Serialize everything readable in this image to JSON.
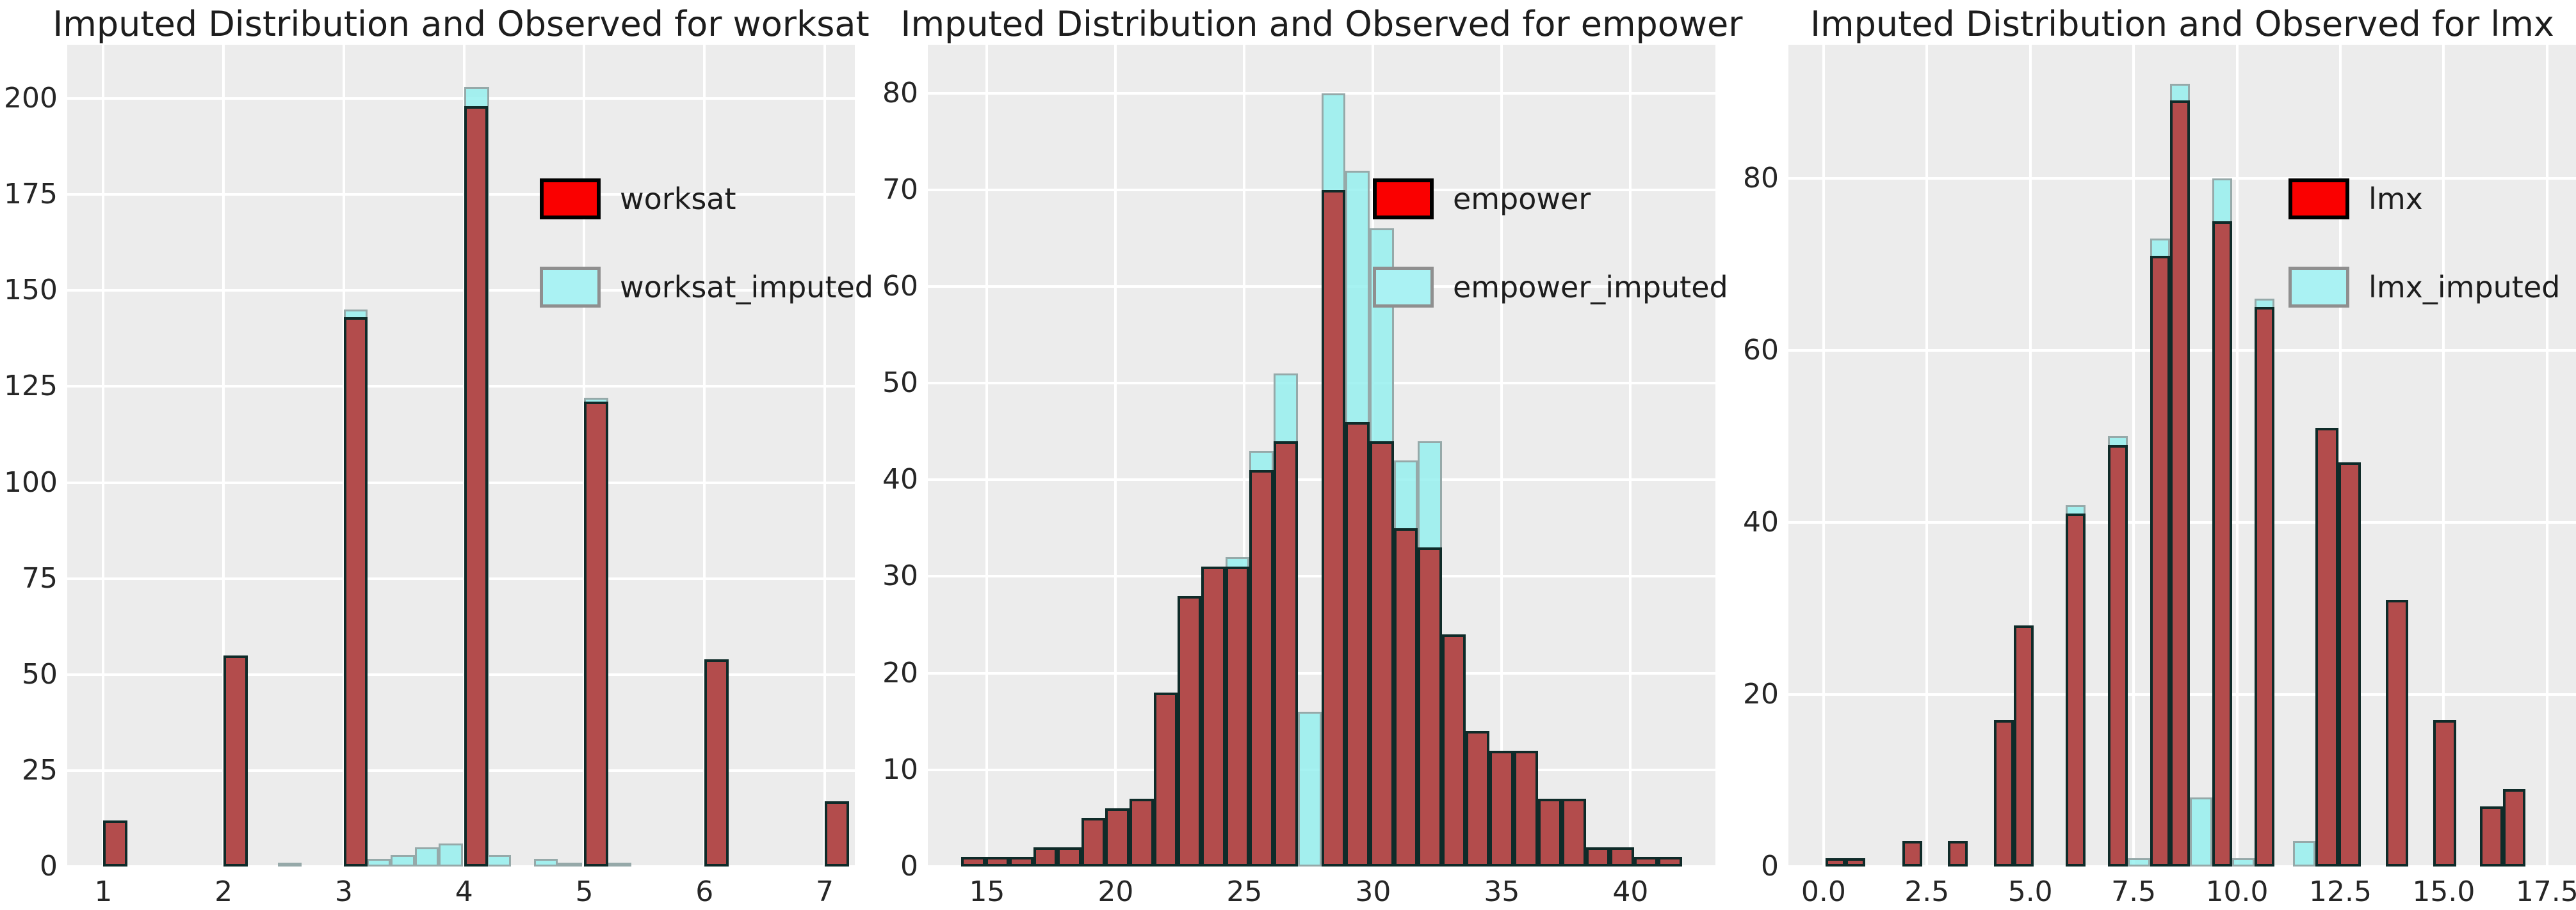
{
  "figure": {
    "background": "#ffffff",
    "panel_background": "#ececec",
    "grid_color": "#ffffff",
    "observed_fill": "#b34c4c",
    "observed_edge": "#0f2b29",
    "imputed_fill": "#a6efee",
    "imputed_edge": "#96a9a9",
    "legend_observed_swatch": "#fa0000",
    "legend_imputed_swatch": "#aaf2f3",
    "text_color": "#262626"
  },
  "chart_data": [
    {
      "type": "bar",
      "id": "worksat",
      "title": "Imputed Distribution and Observed for worksat",
      "legend": [
        "worksat",
        "worksat_imputed"
      ],
      "legend_pos": {
        "x": 0.6,
        "y": 0.163
      },
      "xlim": [
        0.7,
        7.25
      ],
      "ylim": [
        0,
        214
      ],
      "grid": true,
      "xticks": [
        {
          "v": 1,
          "label": "1"
        },
        {
          "v": 2,
          "label": "2"
        },
        {
          "v": 3,
          "label": "3"
        },
        {
          "v": 4,
          "label": "4"
        },
        {
          "v": 5,
          "label": "5"
        },
        {
          "v": 6,
          "label": "6"
        },
        {
          "v": 7,
          "label": "7"
        }
      ],
      "yticks": [
        {
          "v": 0,
          "label": "0"
        },
        {
          "v": 25,
          "label": "25"
        },
        {
          "v": 50,
          "label": "50"
        },
        {
          "v": 75,
          "label": "75"
        },
        {
          "v": 100,
          "label": "100"
        },
        {
          "v": 125,
          "label": "125"
        },
        {
          "v": 150,
          "label": "150"
        },
        {
          "v": 175,
          "label": "175"
        },
        {
          "v": 200,
          "label": "200"
        }
      ],
      "observed_bars": [
        [
          1.0,
          1.2,
          12
        ],
        [
          2.0,
          2.2,
          55
        ],
        [
          3.0,
          3.2,
          143
        ],
        [
          4.0,
          4.2,
          198
        ],
        [
          5.0,
          5.2,
          121
        ],
        [
          6.0,
          6.2,
          54
        ],
        [
          7.0,
          7.2,
          17
        ]
      ],
      "imputed_bars": [
        [
          2.45,
          2.65,
          1
        ],
        [
          3.0,
          3.2,
          145
        ],
        [
          3.19,
          3.39,
          2
        ],
        [
          3.39,
          3.59,
          3
        ],
        [
          3.59,
          3.79,
          5
        ],
        [
          3.79,
          3.99,
          6
        ],
        [
          4.0,
          4.21,
          203
        ],
        [
          4.19,
          4.39,
          3
        ],
        [
          4.58,
          4.78,
          2
        ],
        [
          4.78,
          4.98,
          1
        ],
        [
          5.0,
          5.2,
          122
        ],
        [
          5.19,
          5.39,
          1
        ]
      ]
    },
    {
      "type": "bar",
      "id": "empower",
      "title": "Imputed Distribution and Observed for empower",
      "legend": [
        "empower",
        "empower_imputed"
      ],
      "legend_pos": {
        "x": 0.565,
        "y": 0.163
      },
      "xlim": [
        12.7,
        43.3
      ],
      "ylim": [
        0,
        85
      ],
      "grid": true,
      "xticks": [
        {
          "v": 15,
          "label": "15"
        },
        {
          "v": 20,
          "label": "20"
        },
        {
          "v": 25,
          "label": "25"
        },
        {
          "v": 30,
          "label": "30"
        },
        {
          "v": 35,
          "label": "35"
        },
        {
          "v": 40,
          "label": "40"
        }
      ],
      "yticks": [
        {
          "v": 0,
          "label": "0"
        },
        {
          "v": 10,
          "label": "10"
        },
        {
          "v": 20,
          "label": "20"
        },
        {
          "v": 30,
          "label": "30"
        },
        {
          "v": 40,
          "label": "40"
        },
        {
          "v": 50,
          "label": "50"
        },
        {
          "v": 60,
          "label": "60"
        },
        {
          "v": 70,
          "label": "70"
        },
        {
          "v": 80,
          "label": "80"
        }
      ],
      "observed_bars": [
        [
          14.0,
          14.93,
          1
        ],
        [
          14.93,
          15.87,
          1
        ],
        [
          15.87,
          16.8,
          1
        ],
        [
          16.8,
          17.73,
          2
        ],
        [
          17.73,
          18.67,
          2
        ],
        [
          18.67,
          19.6,
          5
        ],
        [
          19.6,
          20.53,
          6
        ],
        [
          20.53,
          21.47,
          7
        ],
        [
          21.47,
          22.4,
          18
        ],
        [
          22.4,
          23.33,
          28
        ],
        [
          23.33,
          24.27,
          31
        ],
        [
          24.27,
          25.2,
          31
        ],
        [
          25.2,
          26.13,
          41
        ],
        [
          26.13,
          27.07,
          44
        ],
        [
          28.0,
          28.93,
          70
        ],
        [
          28.93,
          29.87,
          46
        ],
        [
          29.87,
          30.8,
          44
        ],
        [
          30.8,
          31.73,
          35
        ],
        [
          31.73,
          32.67,
          33
        ],
        [
          32.67,
          33.6,
          24
        ],
        [
          33.6,
          34.53,
          14
        ],
        [
          34.53,
          35.47,
          12
        ],
        [
          35.47,
          36.4,
          12
        ],
        [
          36.4,
          37.33,
          7
        ],
        [
          37.33,
          38.27,
          7
        ],
        [
          38.27,
          39.2,
          2
        ],
        [
          39.2,
          40.13,
          2
        ],
        [
          40.13,
          41.07,
          1
        ],
        [
          41.07,
          42.0,
          1
        ]
      ],
      "imputed_bars": [
        [
          24.27,
          25.2,
          32
        ],
        [
          25.2,
          26.13,
          43
        ],
        [
          26.13,
          27.07,
          51
        ],
        [
          27.07,
          28.0,
          16
        ],
        [
          28.0,
          28.93,
          80
        ],
        [
          28.93,
          29.87,
          72
        ],
        [
          29.87,
          30.8,
          66
        ],
        [
          30.8,
          31.73,
          42
        ],
        [
          31.73,
          32.67,
          44
        ]
      ]
    },
    {
      "type": "bar",
      "id": "lmx",
      "title": "Imputed Distribution and Observed for lmx",
      "legend": [
        "lmx",
        "lmx_imputed"
      ],
      "legend_pos": {
        "x": 0.635,
        "y": 0.163
      },
      "xlim": [
        -0.85,
        18.2
      ],
      "ylim": [
        0,
        95.5
      ],
      "grid": true,
      "xticks": [
        {
          "v": 0,
          "label": "0.0"
        },
        {
          "v": 2.5,
          "label": "2.5"
        },
        {
          "v": 5,
          "label": "5.0"
        },
        {
          "v": 7.5,
          "label": "7.5"
        },
        {
          "v": 10,
          "label": "10.0"
        },
        {
          "v": 12.5,
          "label": "12.5"
        },
        {
          "v": 15,
          "label": "15.0"
        },
        {
          "v": 17.5,
          "label": "17.5"
        }
      ],
      "yticks": [
        {
          "v": 0,
          "label": "0"
        },
        {
          "v": 20,
          "label": "20"
        },
        {
          "v": 40,
          "label": "40"
        },
        {
          "v": 60,
          "label": "60"
        },
        {
          "v": 80,
          "label": "80"
        }
      ],
      "observed_bars": [
        [
          0.05,
          0.53,
          1
        ],
        [
          0.53,
          1.01,
          1
        ],
        [
          1.9,
          2.38,
          3
        ],
        [
          3.0,
          3.48,
          3
        ],
        [
          4.12,
          4.6,
          17
        ],
        [
          4.6,
          5.08,
          28
        ],
        [
          5.85,
          6.33,
          41
        ],
        [
          6.88,
          7.36,
          49
        ],
        [
          7.9,
          8.38,
          71
        ],
        [
          8.38,
          8.86,
          89
        ],
        [
          9.4,
          9.88,
          75
        ],
        [
          10.42,
          10.9,
          65
        ],
        [
          11.9,
          12.45,
          51
        ],
        [
          12.45,
          13.0,
          47
        ],
        [
          13.6,
          14.15,
          31
        ],
        [
          14.75,
          15.3,
          17
        ],
        [
          15.88,
          16.43,
          7
        ],
        [
          16.43,
          16.98,
          9
        ]
      ],
      "imputed_bars": [
        [
          5.85,
          6.33,
          42
        ],
        [
          6.88,
          7.36,
          50
        ],
        [
          7.36,
          7.9,
          1
        ],
        [
          7.9,
          8.38,
          73
        ],
        [
          8.38,
          8.86,
          91
        ],
        [
          8.86,
          9.4,
          8
        ],
        [
          9.4,
          9.88,
          80
        ],
        [
          9.88,
          10.42,
          1
        ],
        [
          10.42,
          10.9,
          66
        ],
        [
          11.35,
          11.9,
          3
        ]
      ]
    }
  ]
}
